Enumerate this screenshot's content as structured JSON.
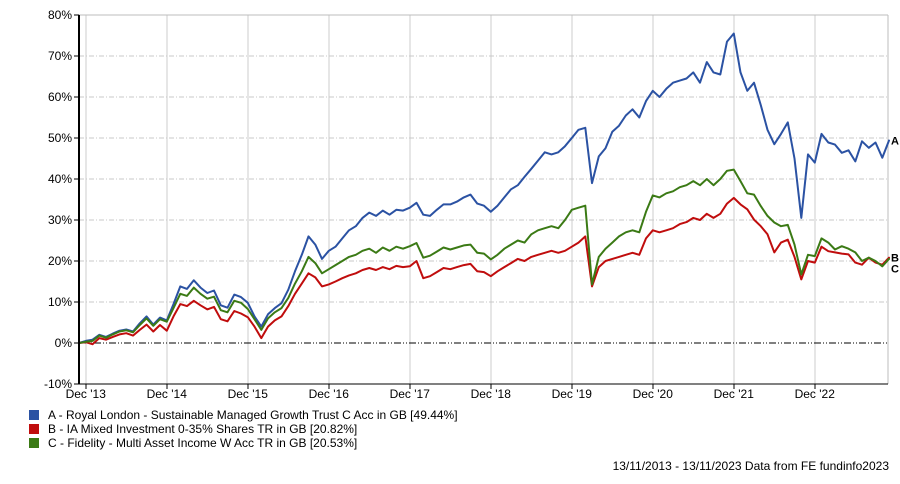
{
  "footer": {
    "text": "13/11/2013 - 13/11/2023 Data from FE fundinfo2023"
  },
  "chart_data": {
    "type": "line",
    "title": "",
    "xlabel": "",
    "ylabel": "",
    "grid": true,
    "legend_position": "bottom-left",
    "ylim": [
      -10,
      80
    ],
    "x_unit": "months since 13/11/2013",
    "x_range_months": 120,
    "date_range": "13/11/2013 - 13/11/2023",
    "y_ticks": [
      {
        "v": 80,
        "label": "80%"
      },
      {
        "v": 70,
        "label": "70%"
      },
      {
        "v": 60,
        "label": "60%"
      },
      {
        "v": 50,
        "label": "50%"
      },
      {
        "v": 40,
        "label": "40%"
      },
      {
        "v": 30,
        "label": "30%"
      },
      {
        "v": 20,
        "label": "20%"
      },
      {
        "v": 10,
        "label": "10%"
      },
      {
        "v": 0,
        "label": "0%"
      },
      {
        "v": -10,
        "label": "-10%"
      }
    ],
    "x_ticks": [
      {
        "m": 1,
        "label": "Dec '13"
      },
      {
        "m": 13,
        "label": "Dec '14"
      },
      {
        "m": 25,
        "label": "Dec '15"
      },
      {
        "m": 37,
        "label": "Dec '16"
      },
      {
        "m": 49,
        "label": "Dec '17"
      },
      {
        "m": 61,
        "label": "Dec '18"
      },
      {
        "m": 73,
        "label": "Dec '19"
      },
      {
        "m": 85,
        "label": "Dec '20"
      },
      {
        "m": 97,
        "label": "Dec '21"
      },
      {
        "m": 109,
        "label": "Dec '22"
      }
    ],
    "series": [
      {
        "letter": "A",
        "legend_label": "A - Royal London - Sustainable Managed Growth Trust C Acc in GB [49.44%]",
        "final_value_pct": 49.44,
        "color": "#2b52a3",
        "values": [
          0,
          0.5,
          0.8,
          2.0,
          1.5,
          2.3,
          3.0,
          3.3,
          2.8,
          4.8,
          6.5,
          4.5,
          6.2,
          5.5,
          9.5,
          13.8,
          13.2,
          15.3,
          13.5,
          12.2,
          12.8,
          9.2,
          8.6,
          11.8,
          11.2,
          9.8,
          6.5,
          4.0,
          7.0,
          8.5,
          9.7,
          13.0,
          17.5,
          21.5,
          26.0,
          24.0,
          20.5,
          22.5,
          23.5,
          25.5,
          27.5,
          28.5,
          30.5,
          31.8,
          31.0,
          32.3,
          31.3,
          32.5,
          32.3,
          33.0,
          34.2,
          31.3,
          31.0,
          32.5,
          33.8,
          33.8,
          34.5,
          35.5,
          36.2,
          34.0,
          33.5,
          32.0,
          33.5,
          35.5,
          37.5,
          38.5,
          40.5,
          42.5,
          44.5,
          46.5,
          46.0,
          46.5,
          48.0,
          50.0,
          52.0,
          52.5,
          39.0,
          45.5,
          47.5,
          51.5,
          53.0,
          55.5,
          57.0,
          55.0,
          59.0,
          61.5,
          60.0,
          62.0,
          63.5,
          64.0,
          64.5,
          66.0,
          63.5,
          68.5,
          66.0,
          65.5,
          73.5,
          75.5,
          66.0,
          61.5,
          63.5,
          58.0,
          52.0,
          48.5,
          51.0,
          53.8,
          45.0,
          30.5,
          46.0,
          44.0,
          51.0,
          48.9,
          48.4,
          46.4,
          47.0,
          44.3,
          49.2,
          47.6,
          48.9,
          45.2,
          49.4
        ]
      },
      {
        "letter": "B",
        "legend_label": "B - IA Mixed Investment 0-35% Shares TR in GB [20.82%]",
        "final_value_pct": 20.82,
        "color": "#c00d0d",
        "values": [
          0,
          0.2,
          -0.3,
          1.2,
          0.8,
          1.5,
          2.1,
          2.4,
          1.8,
          3.2,
          4.5,
          2.8,
          4.4,
          3.0,
          6.5,
          9.5,
          9.0,
          10.3,
          9.2,
          8.2,
          8.8,
          5.8,
          5.3,
          7.8,
          7.2,
          6.3,
          4.0,
          1.2,
          4.0,
          5.5,
          6.5,
          9.0,
          12.0,
          14.5,
          17.0,
          16.0,
          13.8,
          14.3,
          15.0,
          15.8,
          16.5,
          17.0,
          17.8,
          18.3,
          17.8,
          18.5,
          18.0,
          18.8,
          18.5,
          18.7,
          20.0,
          15.8,
          16.3,
          17.3,
          18.3,
          18.0,
          18.5,
          19.0,
          19.3,
          17.5,
          17.3,
          16.3,
          17.5,
          18.5,
          19.5,
          20.5,
          20.0,
          21.0,
          21.5,
          22.0,
          22.5,
          22.0,
          22.5,
          23.5,
          24.5,
          26.0,
          13.8,
          18.5,
          20.0,
          20.5,
          21.0,
          21.5,
          22.0,
          21.5,
          25.5,
          27.5,
          27.0,
          27.5,
          28.0,
          29.0,
          29.5,
          30.5,
          30.0,
          31.5,
          30.5,
          31.5,
          34.0,
          35.4,
          33.8,
          32.6,
          30.1,
          28.5,
          26.5,
          22.1,
          24.5,
          25.2,
          21.0,
          15.5,
          20.0,
          19.6,
          23.5,
          22.4,
          22.1,
          21.8,
          21.6,
          19.6,
          19.1,
          20.8,
          19.6,
          19.1,
          20.8
        ]
      },
      {
        "letter": "C",
        "legend_label": "C - Fidelity - Multi Asset Income W Acc TR in GB [20.53%]",
        "final_value_pct": 20.53,
        "color": "#3b7a15",
        "values": [
          0,
          0.3,
          0.5,
          1.8,
          1.3,
          2.1,
          2.8,
          3.1,
          2.6,
          4.4,
          6.0,
          4.2,
          5.8,
          5.2,
          8.5,
          12.0,
          11.5,
          13.5,
          12.0,
          10.8,
          11.3,
          8.0,
          7.5,
          10.3,
          9.8,
          8.3,
          5.8,
          3.2,
          6.0,
          7.5,
          8.5,
          11.0,
          14.5,
          17.5,
          21.0,
          19.5,
          17.0,
          18.0,
          19.0,
          20.0,
          21.0,
          21.5,
          22.5,
          23.0,
          22.0,
          23.3,
          22.5,
          23.5,
          23.0,
          23.6,
          24.4,
          20.8,
          21.3,
          22.3,
          23.3,
          22.8,
          23.3,
          23.8,
          24.0,
          22.0,
          21.8,
          20.4,
          21.5,
          23.0,
          24.0,
          25.0,
          24.5,
          26.5,
          27.5,
          28.0,
          28.5,
          28.0,
          30.0,
          32.5,
          33.0,
          33.5,
          14.3,
          21.0,
          23.0,
          24.5,
          26.0,
          27.0,
          27.5,
          27.0,
          32.0,
          36.0,
          35.5,
          36.5,
          37.0,
          38.0,
          38.5,
          39.5,
          38.5,
          40.0,
          38.5,
          40.0,
          42.0,
          42.3,
          39.5,
          36.5,
          36.2,
          33.4,
          31.0,
          29.4,
          28.5,
          28.8,
          24.0,
          16.7,
          21.5,
          21.2,
          25.5,
          24.5,
          22.8,
          23.6,
          23.0,
          22.1,
          20.0,
          20.8,
          20.0,
          18.7,
          20.5
        ]
      }
    ]
  }
}
